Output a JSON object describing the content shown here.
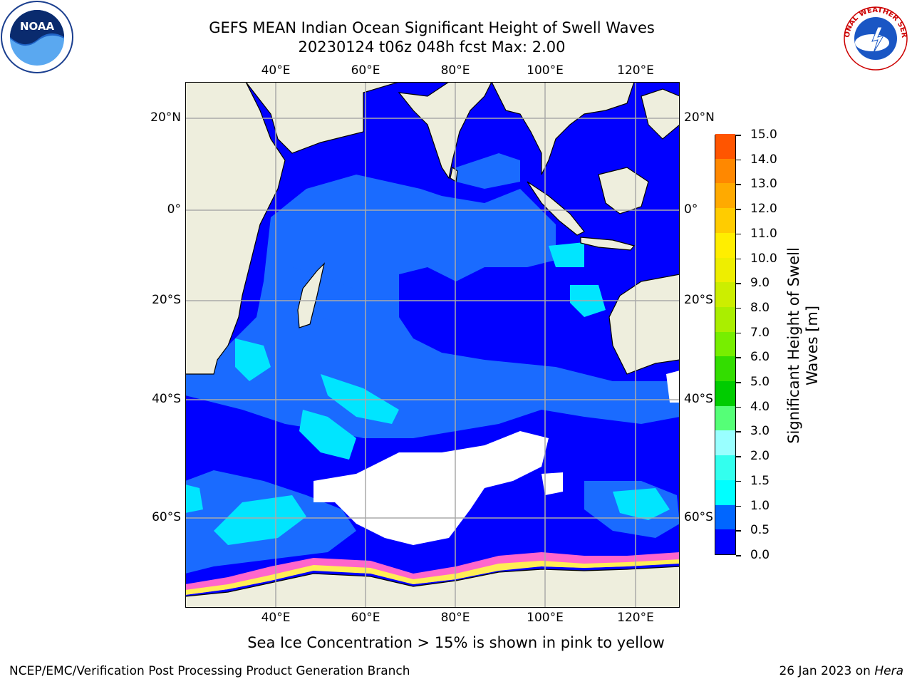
{
  "title_line1": "GEFS MEAN Indian Ocean Significant Height of Swell Waves",
  "title_line2": "20230124 t06z 048h fcst   Max: 2.00",
  "map": {
    "lon_ticks": [
      "40°E",
      "60°E",
      "80°E",
      "100°E",
      "120°E"
    ],
    "lat_ticks_left": [
      "20°N",
      "0°",
      "20°S",
      "40°S",
      "60°S"
    ],
    "lat_ticks_right": [
      "20°N",
      "0°",
      "20°S",
      "40°S",
      "60°S"
    ],
    "land_color": "#eeeedd",
    "ocean_base_color": "#0000ff"
  },
  "colorbar": {
    "title_line1": "Significant Height of Swell",
    "title_line2": "Waves [m]",
    "labels": [
      "15.0",
      "14.0",
      "13.0",
      "12.0",
      "11.0",
      "10.0",
      "9.0",
      "8.0",
      "7.0",
      "6.0",
      "5.0",
      "4.0",
      "3.0",
      "2.0",
      "1.5",
      "1.0",
      "0.5",
      "0.0"
    ],
    "colors": [
      "#0000ff",
      "#0066ff",
      "#00ffff",
      "#33ffee",
      "#99ffff",
      "#55ff77",
      "#00cc00",
      "#33dd00",
      "#77ee00",
      "#aaee00",
      "#ccee00",
      "#eeee00",
      "#ffee00",
      "#ffcc00",
      "#ffaa00",
      "#ff8800",
      "#ff5500",
      "#ff2200",
      "#ff0000"
    ]
  },
  "footnote": "Sea Ice Concentration > 15% is shown in pink to yellow",
  "credit_left": "NCEP/EMC/Verification Post Processing Product Generation Branch",
  "credit_right_date": "26 Jan 2023 on ",
  "credit_right_host": "Hera",
  "logos": {
    "noaa_text": "NOAA",
    "nws_text": "NATIONAL WEATHER SERVICE"
  }
}
